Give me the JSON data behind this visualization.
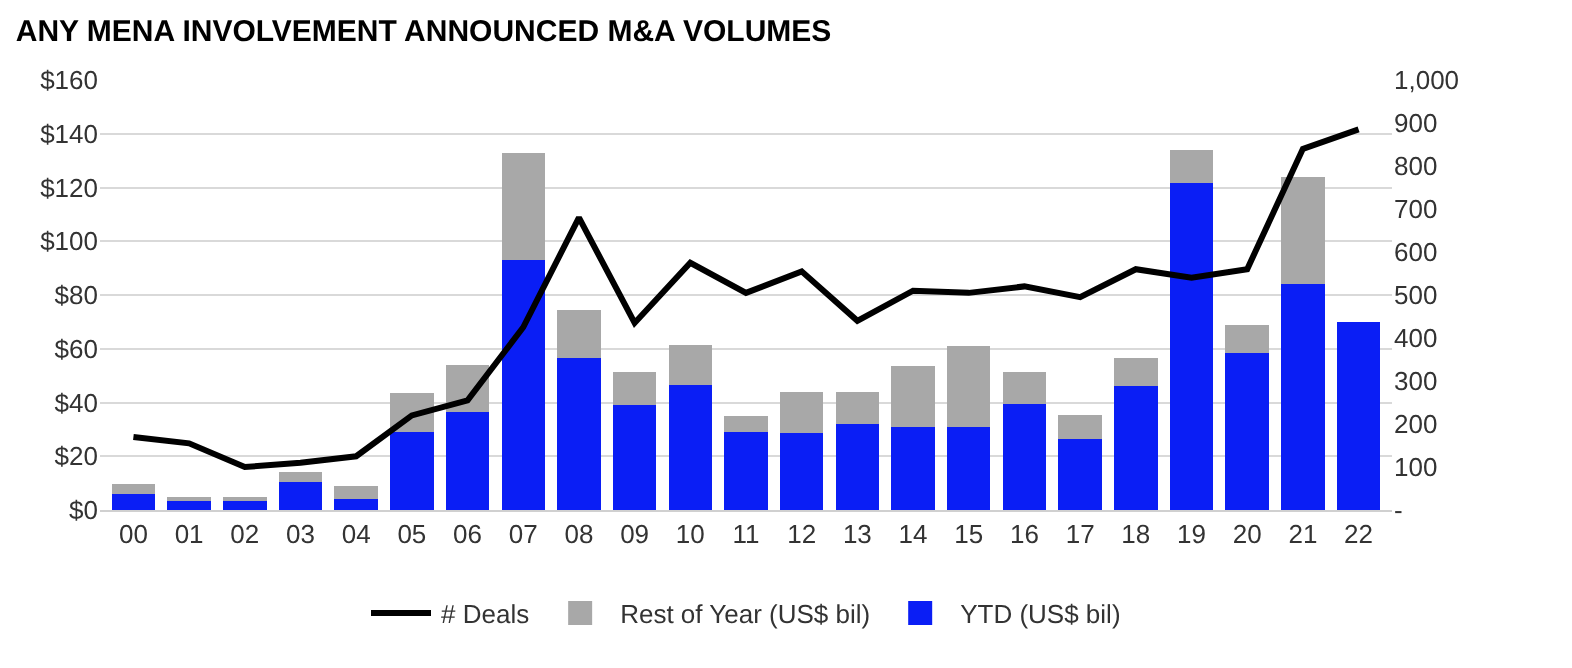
{
  "chart_data": {
    "type": "bar",
    "stacked": true,
    "title": "ANY MENA INVOLVEMENT ANNOUNCED M&A VOLUMES",
    "categories": [
      "00",
      "01",
      "02",
      "03",
      "04",
      "05",
      "06",
      "07",
      "08",
      "09",
      "10",
      "11",
      "12",
      "13",
      "14",
      "15",
      "16",
      "17",
      "18",
      "19",
      "20",
      "21",
      "22"
    ],
    "series": [
      {
        "name": "YTD (US$ bil)",
        "color": "#0a1ef5",
        "values": [
          6,
          3.5,
          3.5,
          10.5,
          4,
          29,
          36.5,
          93,
          56.5,
          39,
          46.5,
          29,
          28.5,
          32,
          31,
          31,
          39.5,
          26.5,
          46,
          121.5,
          58.5,
          84,
          70
        ]
      },
      {
        "name": "Rest of Year (US$ bil)",
        "color": "#a8a8a8",
        "values": [
          3.5,
          1.5,
          1.5,
          3.5,
          5,
          14.5,
          17.5,
          40,
          18,
          12.5,
          15,
          6,
          15.5,
          12,
          22.5,
          30,
          12,
          9,
          10.5,
          12.5,
          10.5,
          40,
          0
        ]
      },
      {
        "name": "# Deals",
        "type": "line",
        "axis": "y2",
        "color": "#000000",
        "values": [
          170,
          155,
          100,
          110,
          125,
          220,
          255,
          425,
          680,
          435,
          575,
          505,
          555,
          440,
          510,
          505,
          520,
          495,
          560,
          540,
          560,
          840,
          885
        ]
      }
    ],
    "ylim": [
      0,
      160
    ],
    "yticks": [
      {
        "value": 0,
        "label": "$0"
      },
      {
        "value": 20,
        "label": "$20"
      },
      {
        "value": 40,
        "label": "$40"
      },
      {
        "value": 60,
        "label": "$60"
      },
      {
        "value": 80,
        "label": "$80"
      },
      {
        "value": 100,
        "label": "$100"
      },
      {
        "value": 120,
        "label": "$120"
      },
      {
        "value": 140,
        "label": "$140"
      },
      {
        "value": 160,
        "label": "$160"
      }
    ],
    "y2lim": [
      0,
      1000
    ],
    "y2ticks": [
      {
        "value": 0,
        "label": "-"
      },
      100,
      200,
      300,
      400,
      500,
      600,
      700,
      800,
      900,
      {
        "value": 1000,
        "label": "1,000"
      }
    ],
    "grid": "y",
    "legend": "bottom",
    "marker": "none",
    "line_style": "solid"
  }
}
